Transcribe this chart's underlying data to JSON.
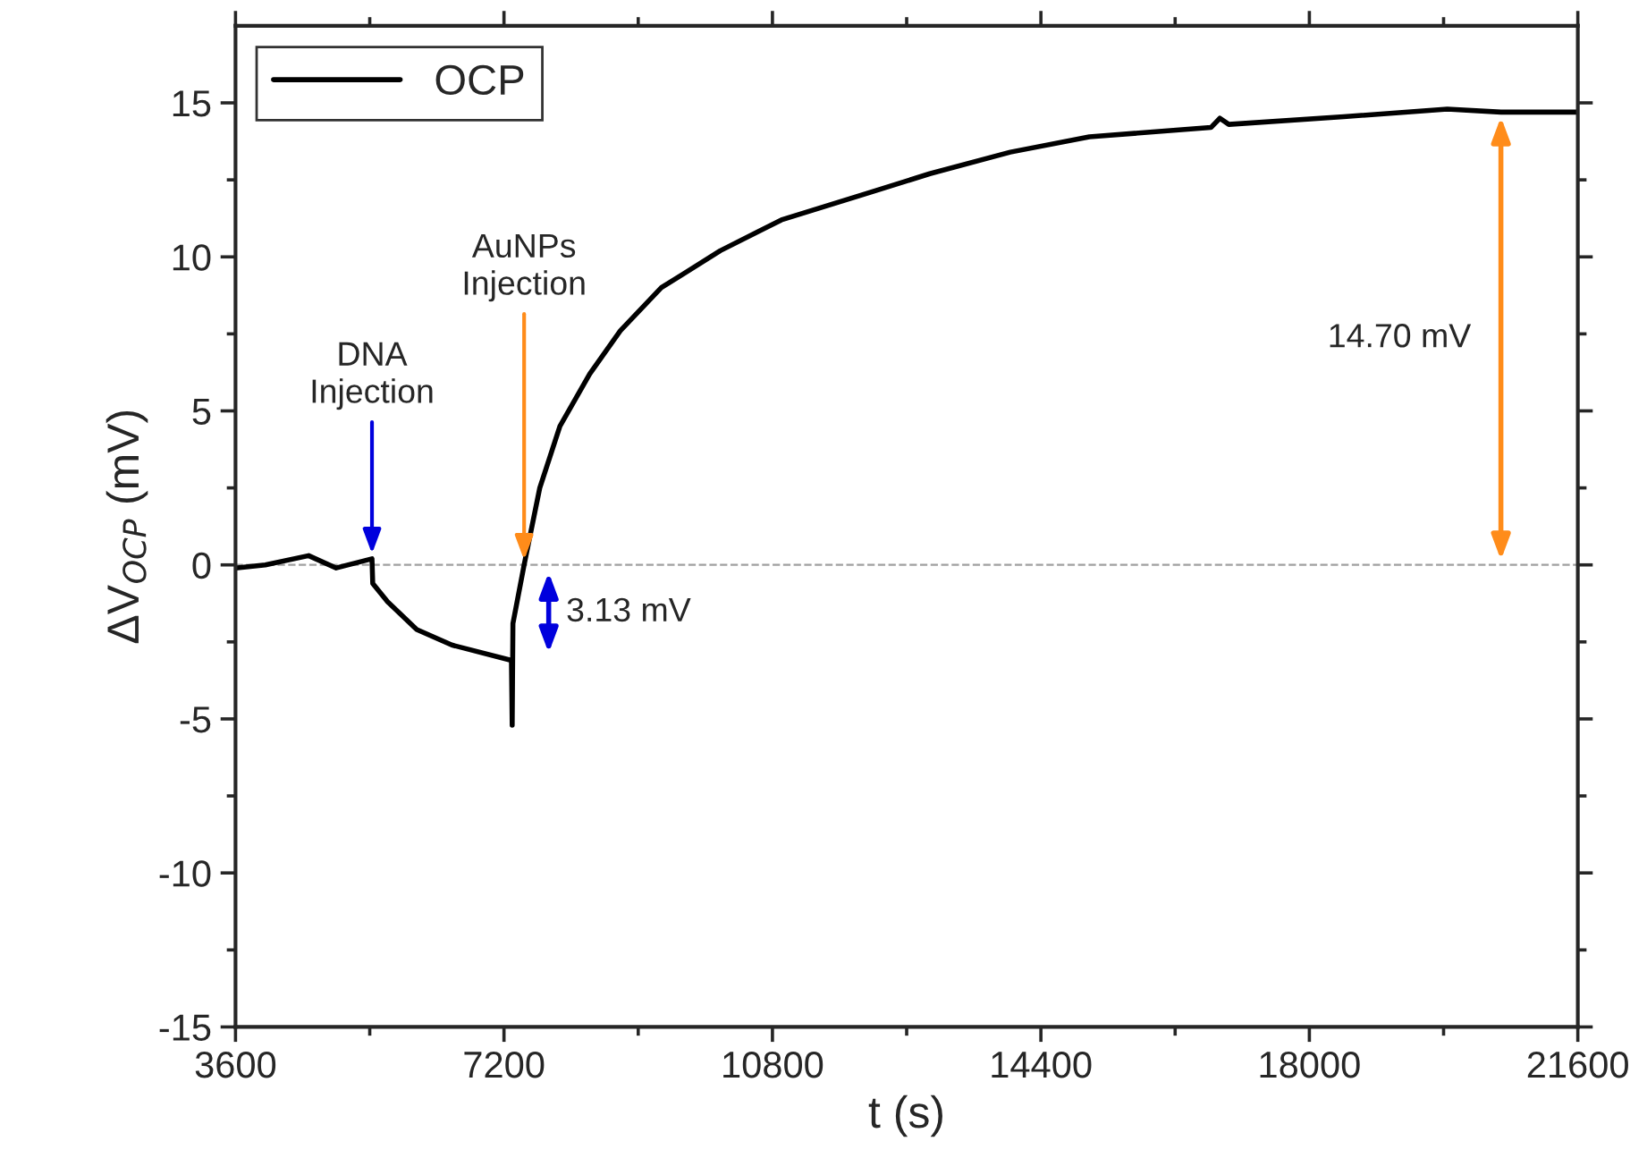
{
  "chart_data": {
    "type": "line",
    "xlabel": "t (s)",
    "ylabel": "ΔV$_{OCP}$ (mV)",
    "series": [
      {
        "name": "OCP",
        "color": "#000000",
        "x": [
          3600,
          4000,
          4580,
          4950,
          5430,
          5440,
          5640,
          6030,
          6500,
          7300,
          7310,
          7320,
          7470,
          7680,
          7950,
          8350,
          8760,
          9310,
          10100,
          10920,
          12120,
          12910,
          13990,
          15050,
          16680,
          16800,
          16920,
          18460,
          19850,
          20570,
          21600
        ],
        "values": [
          -0.1,
          0.0,
          0.3,
          -0.1,
          0.2,
          -0.6,
          -1.2,
          -2.1,
          -2.6,
          -3.1,
          -5.2,
          -1.9,
          0.0,
          2.5,
          4.5,
          6.2,
          7.6,
          9.0,
          10.2,
          11.2,
          12.1,
          12.7,
          13.4,
          13.9,
          14.2,
          14.5,
          14.3,
          14.55,
          14.8,
          14.7,
          14.7
        ]
      }
    ],
    "xlim": [
      3600,
      21600
    ],
    "xticks": [
      3600,
      7200,
      10800,
      14400,
      18000,
      21600
    ],
    "ylim": [
      -15,
      17.5
    ],
    "yticks": [
      -15,
      -10,
      -5,
      0,
      5,
      10,
      15
    ],
    "ref_lines": [
      {
        "axis": "y",
        "value": 0,
        "color": "#a0a0a0",
        "line_style": "dashed"
      }
    ],
    "annotations": [
      {
        "text": "DNA\nInjection",
        "x": 5430,
        "y": 0.2
      },
      {
        "text": "AuNPs\nInjection",
        "x": 7470,
        "y": 0.0
      },
      {
        "text": "3.13 mV",
        "x": 7300,
        "y": -3.1
      },
      "14.70 mV"
    ],
    "legend": "top left",
    "grid": false,
    "line_style": "solid",
    "marker": "none"
  }
}
